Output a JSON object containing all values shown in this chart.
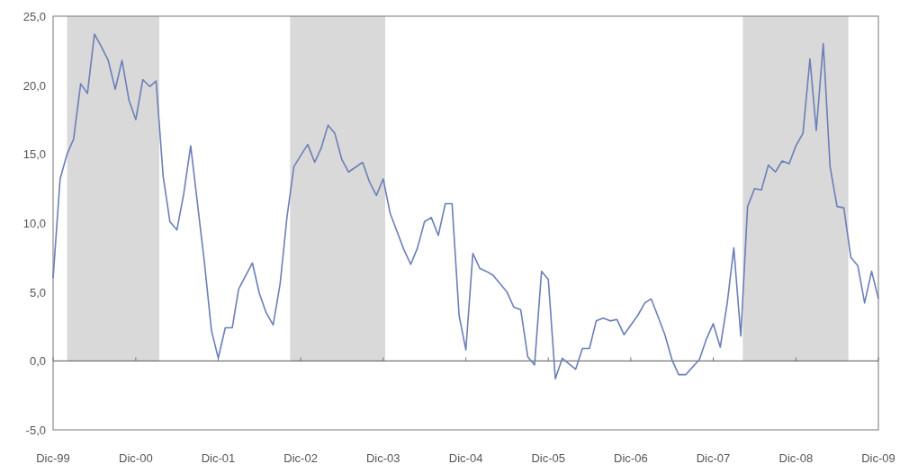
{
  "chart_data": {
    "type": "line",
    "x": [
      "1999-12",
      "2000-01",
      "2000-02",
      "2000-03",
      "2000-04",
      "2000-05",
      "2000-06",
      "2000-07",
      "2000-08",
      "2000-09",
      "2000-10",
      "2000-11",
      "2000-12",
      "2001-01",
      "2001-02",
      "2001-03",
      "2001-04",
      "2001-05",
      "2001-06",
      "2001-07",
      "2001-08",
      "2001-10",
      "2001-11",
      "2001-12",
      "2002-01",
      "2002-02",
      "2002-03",
      "2002-05",
      "2002-06",
      "2002-07",
      "2002-08",
      "2002-09",
      "2002-10",
      "2002-11",
      "2003-01",
      "2003-02",
      "2003-03",
      "2003-04",
      "2003-05",
      "2003-06",
      "2003-07",
      "2003-09",
      "2003-10",
      "2003-11",
      "2003-12",
      "2004-01",
      "2004-03",
      "2004-04",
      "2004-05",
      "2004-06",
      "2004-07",
      "2004-08",
      "2004-09",
      "2004-10",
      "2004-11",
      "2004-12",
      "2005-01",
      "2005-02",
      "2005-03",
      "2005-04",
      "2005-06",
      "2005-07",
      "2005-08",
      "2005-09",
      "2005-10",
      "2005-11",
      "2005-12",
      "2006-01",
      "2006-02",
      "2006-03",
      "2006-04",
      "2006-05",
      "2006-06",
      "2006-07",
      "2006-08",
      "2006-09",
      "2006-10",
      "2006-11",
      "2006-12",
      "2007-01",
      "2007-02",
      "2007-03",
      "2007-04",
      "2007-05",
      "2007-06",
      "2007-07",
      "2007-08",
      "2007-10",
      "2007-11",
      "2007-12",
      "2008-01",
      "2008-02",
      "2008-03",
      "2008-04",
      "2008-05",
      "2008-06",
      "2008-07",
      "2008-08",
      "2008-09",
      "2008-10",
      "2008-11",
      "2008-12",
      "2009-01",
      "2009-02",
      "2009-03",
      "2009-04",
      "2009-05",
      "2009-06",
      "2009-07",
      "2009-08",
      "2009-09",
      "2009-10",
      "2009-11",
      "2009-12"
    ],
    "series": [
      {
        "color": "#6b7fb8",
        "values": [
          6.0,
          13.2,
          15.0,
          16.1,
          20.1,
          19.4,
          23.7,
          22.8,
          21.8,
          19.7,
          21.8,
          18.9,
          17.5,
          20.4,
          19.9,
          20.3,
          13.4,
          10.1,
          9.5,
          12.1,
          15.6,
          7.1,
          2.2,
          0.2,
          2.4,
          2.4,
          5.2,
          7.1,
          4.9,
          3.5,
          2.6,
          5.6,
          10.4,
          14.1,
          15.7,
          14.4,
          15.4,
          17.1,
          16.5,
          14.6,
          13.7,
          14.4,
          13.0,
          12.0,
          13.2,
          10.7,
          8.1,
          7.0,
          8.2,
          10.1,
          10.4,
          9.1,
          11.4,
          11.4,
          3.3,
          0.8,
          7.8,
          6.7,
          6.5,
          6.2,
          5.0,
          3.9,
          3.7,
          0.3,
          -0.3,
          6.5,
          5.9,
          -1.3,
          0.2,
          -0.2,
          -0.6,
          0.9,
          0.9,
          2.9,
          3.1,
          2.9,
          3.0,
          1.9,
          2.6,
          3.3,
          4.2,
          4.5,
          3.2,
          1.9,
          0.1,
          -1.0,
          -1.0,
          0.1,
          1.6,
          2.7,
          1.0,
          4.2,
          8.2,
          1.8,
          11.2,
          12.5,
          12.4,
          14.2,
          13.7,
          14.5,
          14.3,
          15.6,
          16.5,
          21.9,
          16.7,
          23.0,
          14.1,
          11.2,
          11.1,
          7.5,
          6.9,
          4.2,
          6.5,
          4.5
        ]
      }
    ],
    "xlim": [
      "1999-12",
      "2009-12"
    ],
    "xticks": [
      {
        "value": "1999-12",
        "label": "Dic-99"
      },
      {
        "value": "2000-12",
        "label": "Dic-00"
      },
      {
        "value": "2001-12",
        "label": "Dic-01"
      },
      {
        "value": "2002-12",
        "label": "Dic-02"
      },
      {
        "value": "2003-12",
        "label": "Dic-03"
      },
      {
        "value": "2004-12",
        "label": "Dic-04"
      },
      {
        "value": "2005-12",
        "label": "Dic-05"
      },
      {
        "value": "2006-12",
        "label": "Dic-06"
      },
      {
        "value": "2007-12",
        "label": "Dic-07"
      },
      {
        "value": "2008-12",
        "label": "Dic-08"
      },
      {
        "value": "2009-12",
        "label": "Dic-09"
      }
    ],
    "ylim": [
      -5,
      25
    ],
    "yticks": [
      {
        "value": -5,
        "label": "-5,0"
      },
      {
        "value": 0,
        "label": "0,0"
      },
      {
        "value": 5,
        "label": "5,0"
      },
      {
        "value": 10,
        "label": "10,0"
      },
      {
        "value": 15,
        "label": "15,0"
      },
      {
        "value": 20,
        "label": "20,0"
      },
      {
        "value": 25,
        "label": "25,0"
      }
    ],
    "bands": [
      {
        "axis": "x",
        "from": "2000-02",
        "to": "2001-03-15",
        "color": "#d9d9d9"
      },
      {
        "axis": "x",
        "from": "2002-10-15",
        "to": "2003-12-10",
        "color": "#d9d9d9"
      },
      {
        "axis": "x",
        "from": "2008-04-10",
        "to": "2009-07-21",
        "color": "#d9d9d9"
      }
    ],
    "ref_lines": [
      {
        "axis": "y",
        "value": 0,
        "color": "#555555"
      }
    ],
    "grid": false
  }
}
